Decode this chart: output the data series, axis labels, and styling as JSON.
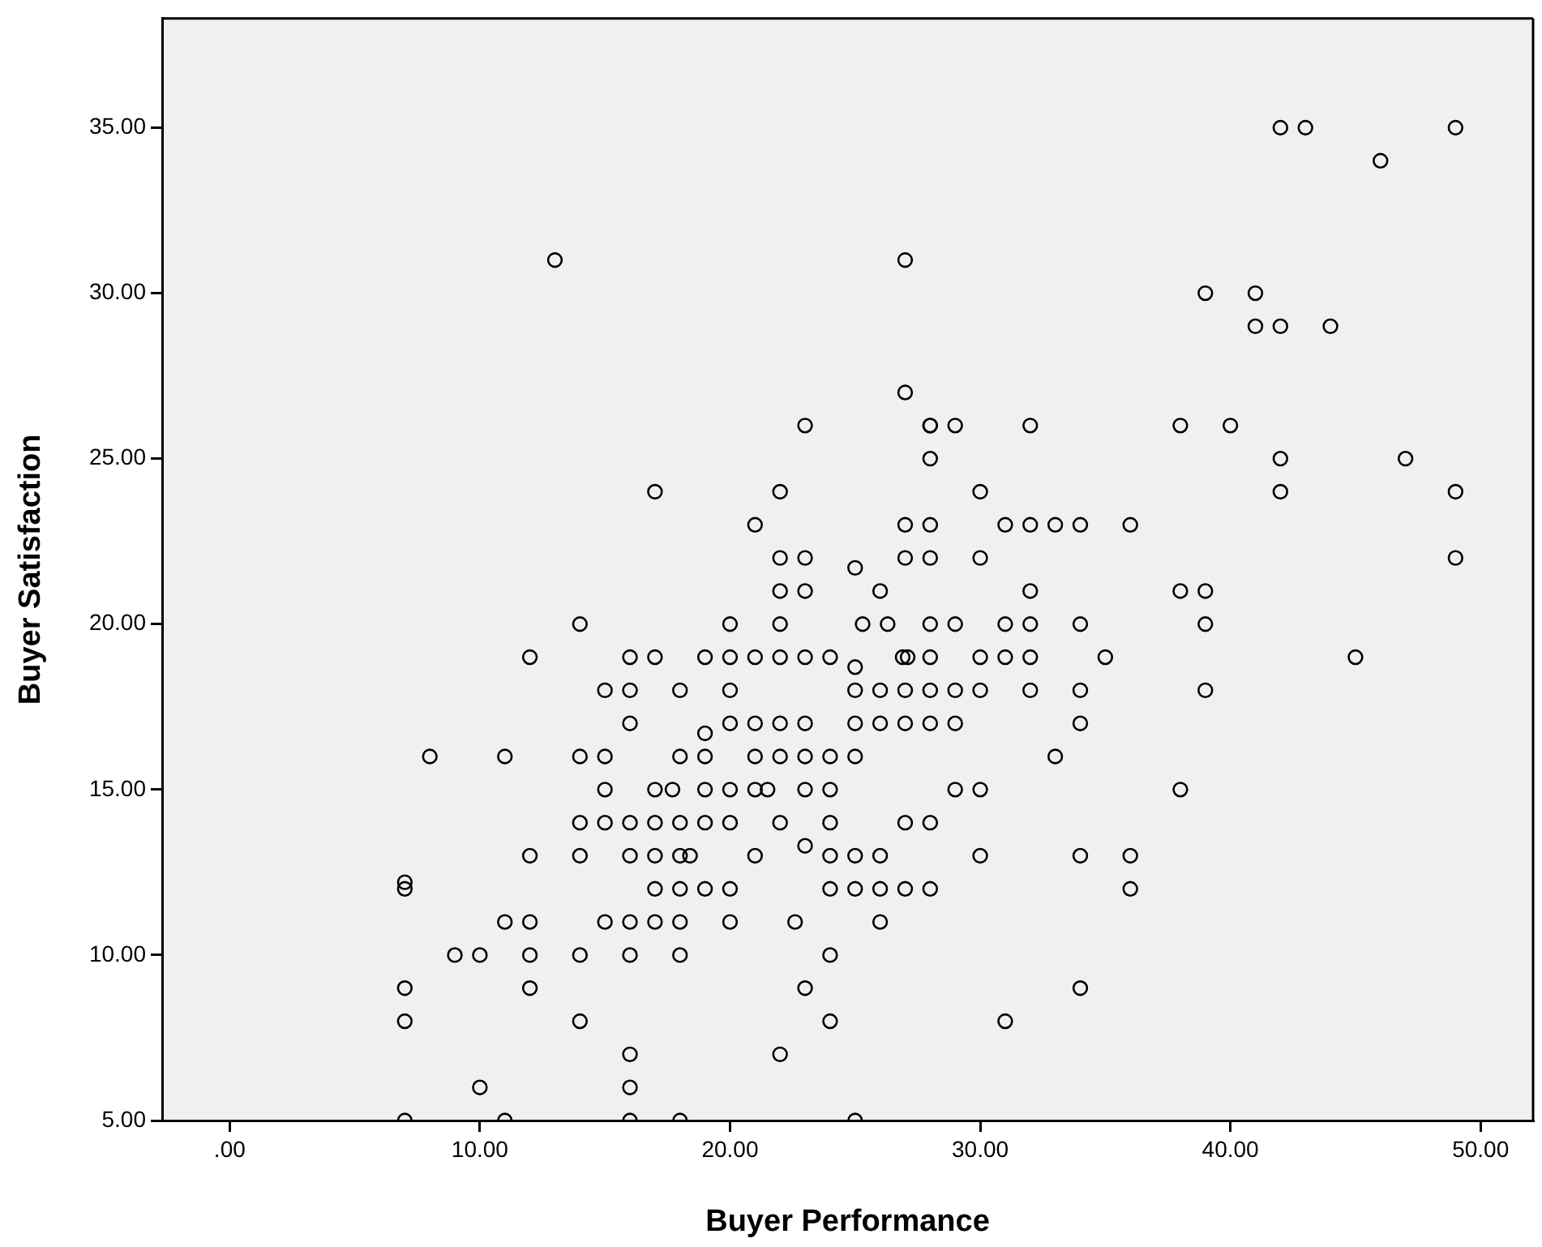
{
  "chart_data": {
    "type": "scatter",
    "xlabel": "Buyer Performance",
    "ylabel": "Buyer Satisfaction",
    "xlim": [
      -2.7,
      52.1
    ],
    "ylim": [
      5,
      38.3
    ],
    "xticks": [
      {
        "value": 0,
        "label": ".00"
      },
      {
        "value": 10,
        "label": "10.00"
      },
      {
        "value": 20,
        "label": "20.00"
      },
      {
        "value": 30,
        "label": "30.00"
      },
      {
        "value": 40,
        "label": "40.00"
      },
      {
        "value": 50,
        "label": "50.00"
      }
    ],
    "yticks": [
      {
        "value": 5,
        "label": "5.00"
      },
      {
        "value": 10,
        "label": "10.00"
      },
      {
        "value": 15,
        "label": "15.00"
      },
      {
        "value": 20,
        "label": "20.00"
      },
      {
        "value": 25,
        "label": "25.00"
      },
      {
        "value": 30,
        "label": "30.00"
      },
      {
        "value": 35,
        "label": "35.00"
      }
    ],
    "grid": false,
    "legend": false,
    "marker": "circle",
    "series": [
      {
        "color": "#000000",
        "x": [
          42,
          43,
          49,
          46,
          13,
          27,
          39,
          41,
          41,
          42,
          44,
          27,
          23,
          28,
          28,
          29,
          32,
          38,
          40,
          28,
          42,
          47,
          17,
          22,
          30,
          42,
          49,
          21,
          27,
          28,
          31,
          32,
          33,
          34,
          36,
          22,
          23,
          27,
          28,
          30,
          49,
          25,
          22,
          23,
          26,
          32,
          38,
          39,
          14,
          20,
          22,
          25.3,
          26.3,
          28,
          29,
          31,
          32,
          34,
          39,
          12,
          16,
          17,
          19,
          20,
          21,
          22,
          23,
          24,
          26.9,
          27.1,
          28,
          30,
          31,
          32,
          35,
          45,
          25,
          15,
          16,
          18,
          20,
          25,
          26,
          27,
          28,
          29,
          30,
          32,
          34,
          39,
          16,
          20,
          21,
          22,
          23,
          25,
          26,
          27,
          28,
          29,
          34,
          19,
          8,
          11,
          14,
          15,
          18,
          19,
          21,
          22,
          23,
          24,
          25,
          33,
          15,
          17,
          17.7,
          19,
          20,
          21,
          21.5,
          23,
          24,
          29,
          30,
          38,
          14,
          15,
          16,
          17,
          18,
          19,
          20,
          22,
          24,
          27,
          28,
          23,
          12,
          14,
          16,
          17,
          18,
          18.4,
          21,
          24,
          25,
          26,
          30,
          34,
          36,
          7,
          7,
          17,
          18,
          19,
          20,
          24,
          25,
          26,
          27,
          28,
          36,
          11,
          12,
          15,
          16,
          17,
          18,
          20,
          22.6,
          26,
          9,
          10,
          12,
          14,
          16,
          18,
          24,
          7,
          12,
          23,
          34,
          7,
          14,
          24,
          31,
          16,
          22,
          10,
          16,
          7,
          11,
          16,
          18,
          25
        ],
        "values": [
          35,
          35,
          35,
          34,
          31,
          31,
          30,
          30,
          29,
          29,
          29,
          27,
          26,
          26,
          26,
          26,
          26,
          26,
          26,
          25,
          25,
          25,
          24,
          24,
          24,
          24,
          24,
          23,
          23,
          23,
          23,
          23,
          23,
          23,
          23,
          22,
          22,
          22,
          22,
          22,
          22,
          21.7,
          21,
          21,
          21,
          21,
          21,
          21,
          20,
          20,
          20,
          20,
          20,
          20,
          20,
          20,
          20,
          20,
          20,
          19,
          19,
          19,
          19,
          19,
          19,
          19,
          19,
          19,
          19,
          19,
          19,
          19,
          19,
          19,
          19,
          19,
          18.7,
          18,
          18,
          18,
          18,
          18,
          18,
          18,
          18,
          18,
          18,
          18,
          18,
          18,
          17,
          17,
          17,
          17,
          17,
          17,
          17,
          17,
          17,
          17,
          17,
          16.7,
          16,
          16,
          16,
          16,
          16,
          16,
          16,
          16,
          16,
          16,
          16,
          16,
          15,
          15,
          15,
          15,
          15,
          15,
          15,
          15,
          15,
          15,
          15,
          15,
          14,
          14,
          14,
          14,
          14,
          14,
          14,
          14,
          14,
          14,
          14,
          13.3,
          13,
          13,
          13,
          13,
          13,
          13,
          13,
          13,
          13,
          13,
          13,
          13,
          13,
          12.2,
          12,
          12,
          12,
          12,
          12,
          12,
          12,
          12,
          12,
          12,
          12,
          11,
          11,
          11,
          11,
          11,
          11,
          11,
          11,
          11,
          10,
          10,
          10,
          10,
          10,
          10,
          10,
          9,
          9,
          9,
          9,
          8,
          8,
          8,
          8,
          7,
          7,
          6,
          6,
          5,
          5,
          5,
          5,
          5
        ]
      }
    ]
  }
}
